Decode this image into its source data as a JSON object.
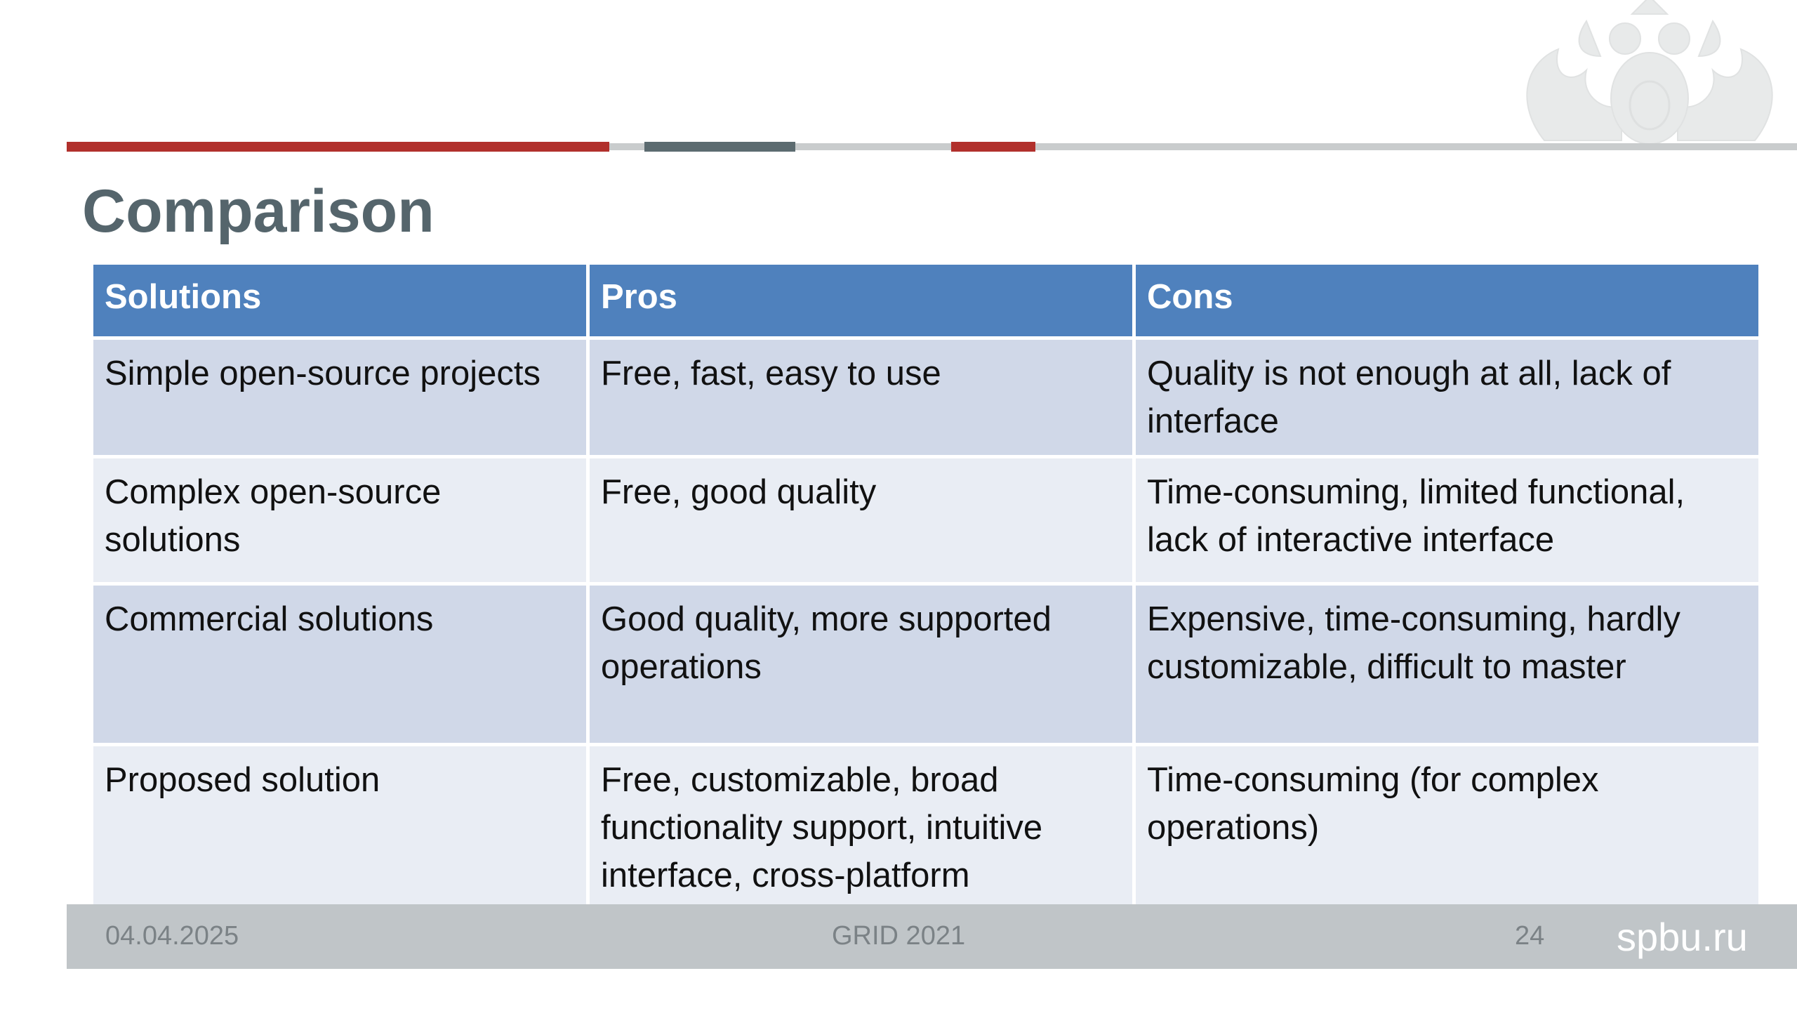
{
  "slide": {
    "title": "Comparison"
  },
  "colors": {
    "accent_red": "#b1302c",
    "accent_slate": "#5c6b70",
    "rule_gray": "#c9cccd",
    "header_blue": "#4f81bd",
    "row_dark": "#d0d8e8",
    "row_light": "#e9edf4",
    "footer_gray": "#c0c5c8",
    "title_gray": "#55656c"
  },
  "decor": {
    "emblem": "double-headed-eagle-emblem"
  },
  "table": {
    "headers": [
      "Solutions",
      "Pros",
      "Cons"
    ],
    "rows": [
      [
        "Simple open-source projects",
        "Free, fast, easy to use",
        "Quality is not enough at all, lack of interface"
      ],
      [
        "Complex open-source solutions",
        "Free, good quality",
        "Time-consuming, limited functional, lack of interactive interface"
      ],
      [
        "Commercial solutions",
        "Good quality, more supported operations",
        "Expensive, time-consuming, hardly customizable, difficult to master"
      ],
      [
        "Proposed solution",
        "Free, customizable, broad functionality support, intuitive interface, cross-platform",
        "Time-consuming (for complex operations)"
      ]
    ]
  },
  "footer": {
    "date": "04.04.2025",
    "event": "GRID 2021",
    "page": "24",
    "site": "spbu.ru"
  }
}
